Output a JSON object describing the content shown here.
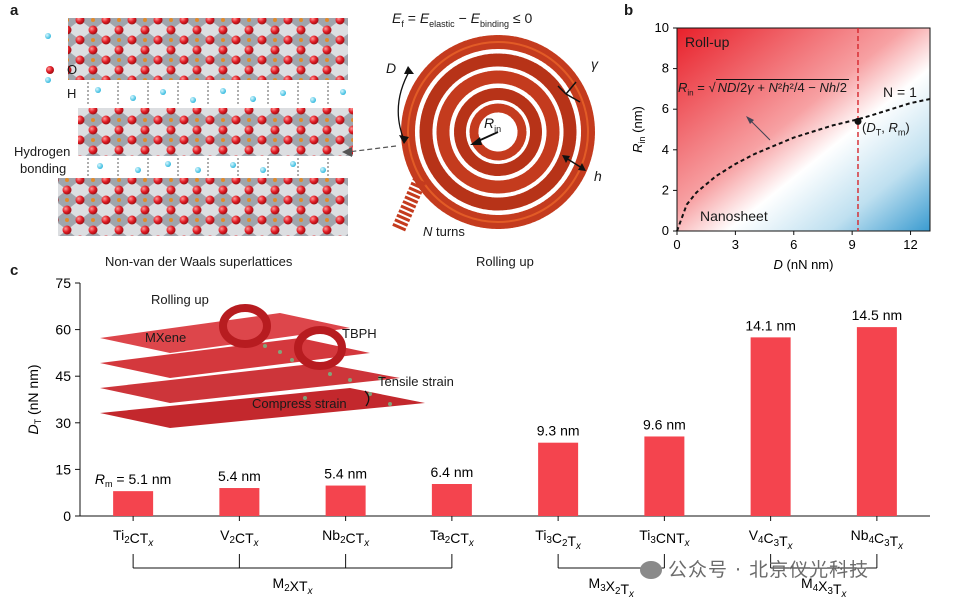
{
  "panels": {
    "a": {
      "letter": "a",
      "labels": {
        "o": "O",
        "h": "H",
        "hbond_line1": "Hydrogen",
        "hbond_line2": "bonding",
        "superlattice": "Non-van der Waals superlattices",
        "rolling_up": "Rolling up",
        "n_turns": "N turns",
        "d": "D",
        "gamma": "γ",
        "h_small": "h"
      },
      "equation": "Ef = Eelastic − Ebinding ≤ 0"
    },
    "b": {
      "letter": "b",
      "labels": {
        "roll_up": "Roll-up",
        "nanosheet": "Nanosheet",
        "n_eq_1": "N = 1",
        "point_label": "(DT, Rm)",
        "formula": "Rin = √( ND/2γ + N²h²/4 − Nh/2 )"
      },
      "colors": {
        "rollup": "#e8202a",
        "nanosheet": "#3a9bd0",
        "dashed_red": "#d6262c"
      }
    },
    "c": {
      "letter": "c",
      "inset": {
        "rolling_up": "Rolling up",
        "mxene": "MXene",
        "tbph": "TBPH",
        "tensile": "Tensile strain",
        "compress": "Compress strain"
      },
      "groups": [
        {
          "label": "M2XTx",
          "from": 0,
          "to": 3
        },
        {
          "label": "M3X2Tx",
          "from": 4,
          "to": 5
        },
        {
          "label": "M4X3Tx",
          "from": 6,
          "to": 7
        }
      ],
      "bar_color": "#f4444e"
    }
  },
  "chart_data": [
    {
      "type": "line",
      "panel": "b",
      "xlabel": "D (nN nm)",
      "ylabel": "Rin (nm)",
      "xlim": [
        0,
        13
      ],
      "ylim": [
        0,
        10
      ],
      "xticks": [
        0,
        3,
        6,
        9,
        12
      ],
      "yticks": [
        0,
        2,
        4,
        6,
        8,
        10
      ],
      "series": [
        {
          "name": "N = 1",
          "style": "dashed",
          "x": [
            0,
            0.5,
            1,
            2,
            3,
            4,
            5,
            6,
            7,
            8,
            9.3,
            10,
            11,
            12,
            13
          ],
          "y": [
            0,
            1.3,
            1.9,
            2.7,
            3.3,
            3.8,
            4.2,
            4.6,
            4.9,
            5.2,
            5.5,
            5.7,
            6.0,
            6.3,
            6.5
          ]
        }
      ],
      "vline_x": 9.3,
      "marker": {
        "x": 9.3,
        "y": 5.4
      }
    },
    {
      "type": "bar",
      "panel": "c",
      "ylabel": "DT (nN nm)",
      "ylim": [
        0,
        75
      ],
      "yticks": [
        0,
        15,
        30,
        45,
        60,
        75
      ],
      "categories": [
        "Ti2CTx",
        "V2CTx",
        "Nb2CTx",
        "Ta2CTx",
        "Ti3C2Tx",
        "Ti3CNTx",
        "V4C3Tx",
        "Nb4C3Tx"
      ],
      "values": [
        8.0,
        9.0,
        9.8,
        10.3,
        23.6,
        25.6,
        57.5,
        60.8
      ],
      "data_labels": [
        "Rm = 5.1 nm",
        "5.4 nm",
        "5.4 nm",
        "6.4 nm",
        "9.3 nm",
        "9.6 nm",
        "14.1 nm",
        "14.5 nm"
      ]
    }
  ],
  "watermark": "公众号 · 北京仪光科技"
}
